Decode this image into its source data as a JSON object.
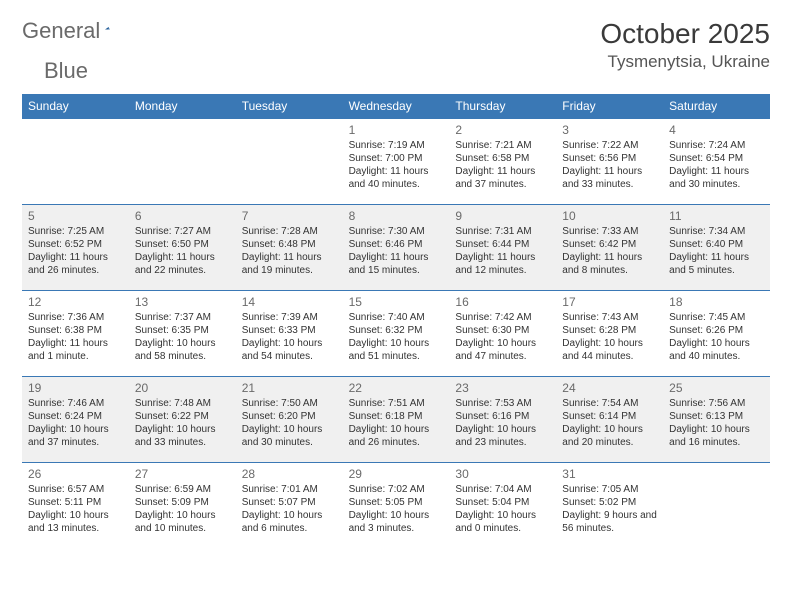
{
  "logo": {
    "text1": "General",
    "text2": "Blue"
  },
  "title": "October 2025",
  "location": "Tysmenytsia, Ukraine",
  "colors": {
    "header_bg": "#3a78b5",
    "header_text": "#ffffff",
    "row_separator": "#3a78b5",
    "shaded_bg": "#f0f0f0",
    "body_text": "#333333",
    "daynum_text": "#6a6a6a",
    "logo_gray": "#6a6a6a",
    "logo_blue": "#3a78b5"
  },
  "weekdays": [
    "Sunday",
    "Monday",
    "Tuesday",
    "Wednesday",
    "Thursday",
    "Friday",
    "Saturday"
  ],
  "weeks": [
    {
      "shaded": false,
      "days": [
        {
          "n": "",
          "sr": "",
          "ss": "",
          "dl": ""
        },
        {
          "n": "",
          "sr": "",
          "ss": "",
          "dl": ""
        },
        {
          "n": "",
          "sr": "",
          "ss": "",
          "dl": ""
        },
        {
          "n": "1",
          "sr": "Sunrise: 7:19 AM",
          "ss": "Sunset: 7:00 PM",
          "dl": "Daylight: 11 hours and 40 minutes."
        },
        {
          "n": "2",
          "sr": "Sunrise: 7:21 AM",
          "ss": "Sunset: 6:58 PM",
          "dl": "Daylight: 11 hours and 37 minutes."
        },
        {
          "n": "3",
          "sr": "Sunrise: 7:22 AM",
          "ss": "Sunset: 6:56 PM",
          "dl": "Daylight: 11 hours and 33 minutes."
        },
        {
          "n": "4",
          "sr": "Sunrise: 7:24 AM",
          "ss": "Sunset: 6:54 PM",
          "dl": "Daylight: 11 hours and 30 minutes."
        }
      ]
    },
    {
      "shaded": true,
      "days": [
        {
          "n": "5",
          "sr": "Sunrise: 7:25 AM",
          "ss": "Sunset: 6:52 PM",
          "dl": "Daylight: 11 hours and 26 minutes."
        },
        {
          "n": "6",
          "sr": "Sunrise: 7:27 AM",
          "ss": "Sunset: 6:50 PM",
          "dl": "Daylight: 11 hours and 22 minutes."
        },
        {
          "n": "7",
          "sr": "Sunrise: 7:28 AM",
          "ss": "Sunset: 6:48 PM",
          "dl": "Daylight: 11 hours and 19 minutes."
        },
        {
          "n": "8",
          "sr": "Sunrise: 7:30 AM",
          "ss": "Sunset: 6:46 PM",
          "dl": "Daylight: 11 hours and 15 minutes."
        },
        {
          "n": "9",
          "sr": "Sunrise: 7:31 AM",
          "ss": "Sunset: 6:44 PM",
          "dl": "Daylight: 11 hours and 12 minutes."
        },
        {
          "n": "10",
          "sr": "Sunrise: 7:33 AM",
          "ss": "Sunset: 6:42 PM",
          "dl": "Daylight: 11 hours and 8 minutes."
        },
        {
          "n": "11",
          "sr": "Sunrise: 7:34 AM",
          "ss": "Sunset: 6:40 PM",
          "dl": "Daylight: 11 hours and 5 minutes."
        }
      ]
    },
    {
      "shaded": false,
      "days": [
        {
          "n": "12",
          "sr": "Sunrise: 7:36 AM",
          "ss": "Sunset: 6:38 PM",
          "dl": "Daylight: 11 hours and 1 minute."
        },
        {
          "n": "13",
          "sr": "Sunrise: 7:37 AM",
          "ss": "Sunset: 6:35 PM",
          "dl": "Daylight: 10 hours and 58 minutes."
        },
        {
          "n": "14",
          "sr": "Sunrise: 7:39 AM",
          "ss": "Sunset: 6:33 PM",
          "dl": "Daylight: 10 hours and 54 minutes."
        },
        {
          "n": "15",
          "sr": "Sunrise: 7:40 AM",
          "ss": "Sunset: 6:32 PM",
          "dl": "Daylight: 10 hours and 51 minutes."
        },
        {
          "n": "16",
          "sr": "Sunrise: 7:42 AM",
          "ss": "Sunset: 6:30 PM",
          "dl": "Daylight: 10 hours and 47 minutes."
        },
        {
          "n": "17",
          "sr": "Sunrise: 7:43 AM",
          "ss": "Sunset: 6:28 PM",
          "dl": "Daylight: 10 hours and 44 minutes."
        },
        {
          "n": "18",
          "sr": "Sunrise: 7:45 AM",
          "ss": "Sunset: 6:26 PM",
          "dl": "Daylight: 10 hours and 40 minutes."
        }
      ]
    },
    {
      "shaded": true,
      "days": [
        {
          "n": "19",
          "sr": "Sunrise: 7:46 AM",
          "ss": "Sunset: 6:24 PM",
          "dl": "Daylight: 10 hours and 37 minutes."
        },
        {
          "n": "20",
          "sr": "Sunrise: 7:48 AM",
          "ss": "Sunset: 6:22 PM",
          "dl": "Daylight: 10 hours and 33 minutes."
        },
        {
          "n": "21",
          "sr": "Sunrise: 7:50 AM",
          "ss": "Sunset: 6:20 PM",
          "dl": "Daylight: 10 hours and 30 minutes."
        },
        {
          "n": "22",
          "sr": "Sunrise: 7:51 AM",
          "ss": "Sunset: 6:18 PM",
          "dl": "Daylight: 10 hours and 26 minutes."
        },
        {
          "n": "23",
          "sr": "Sunrise: 7:53 AM",
          "ss": "Sunset: 6:16 PM",
          "dl": "Daylight: 10 hours and 23 minutes."
        },
        {
          "n": "24",
          "sr": "Sunrise: 7:54 AM",
          "ss": "Sunset: 6:14 PM",
          "dl": "Daylight: 10 hours and 20 minutes."
        },
        {
          "n": "25",
          "sr": "Sunrise: 7:56 AM",
          "ss": "Sunset: 6:13 PM",
          "dl": "Daylight: 10 hours and 16 minutes."
        }
      ]
    },
    {
      "shaded": false,
      "days": [
        {
          "n": "26",
          "sr": "Sunrise: 6:57 AM",
          "ss": "Sunset: 5:11 PM",
          "dl": "Daylight: 10 hours and 13 minutes."
        },
        {
          "n": "27",
          "sr": "Sunrise: 6:59 AM",
          "ss": "Sunset: 5:09 PM",
          "dl": "Daylight: 10 hours and 10 minutes."
        },
        {
          "n": "28",
          "sr": "Sunrise: 7:01 AM",
          "ss": "Sunset: 5:07 PM",
          "dl": "Daylight: 10 hours and 6 minutes."
        },
        {
          "n": "29",
          "sr": "Sunrise: 7:02 AM",
          "ss": "Sunset: 5:05 PM",
          "dl": "Daylight: 10 hours and 3 minutes."
        },
        {
          "n": "30",
          "sr": "Sunrise: 7:04 AM",
          "ss": "Sunset: 5:04 PM",
          "dl": "Daylight: 10 hours and 0 minutes."
        },
        {
          "n": "31",
          "sr": "Sunrise: 7:05 AM",
          "ss": "Sunset: 5:02 PM",
          "dl": "Daylight: 9 hours and 56 minutes."
        },
        {
          "n": "",
          "sr": "",
          "ss": "",
          "dl": ""
        }
      ]
    }
  ]
}
